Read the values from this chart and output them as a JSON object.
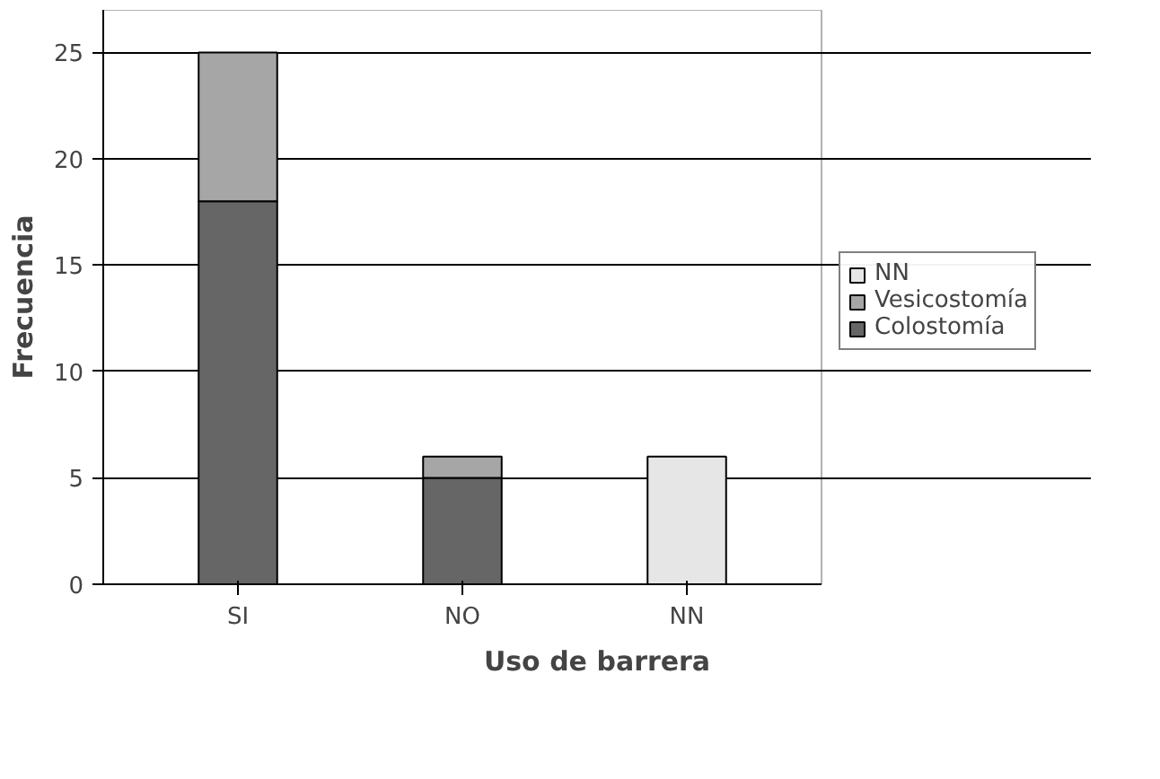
{
  "chart_data": {
    "type": "bar",
    "stacked": true,
    "xlabel": "Uso de barrera",
    "ylabel": "Frecuencia",
    "categories": [
      "SI",
      "NO",
      "NN"
    ],
    "series": [
      {
        "name": "Colostomía",
        "color": "#666666",
        "values": [
          18,
          5,
          null
        ]
      },
      {
        "name": "Vesicostomía",
        "color": "#a6a6a6",
        "values": [
          7,
          1,
          null
        ]
      },
      {
        "name": "NN",
        "color": "#e6e6e6",
        "values": [
          null,
          null,
          6
        ]
      }
    ],
    "ylim": [
      0,
      27
    ],
    "yticks": [
      0,
      5,
      10,
      15,
      20,
      25
    ],
    "grid": "y",
    "legend": "right"
  }
}
